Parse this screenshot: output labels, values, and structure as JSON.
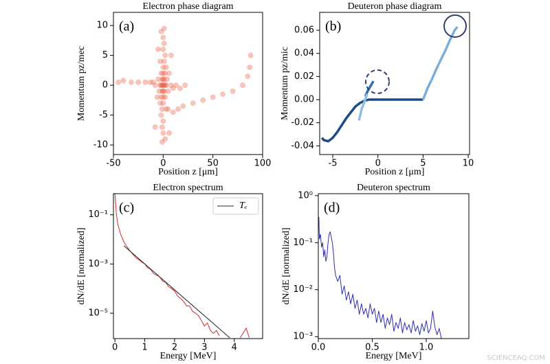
{
  "chart_data": [
    {
      "type": "scatter",
      "title": "Electron phase diagram",
      "panel_label": "(a)",
      "x_label": "Position z [μm]",
      "y_label": "Momentum  pz/mec",
      "xlim": [
        -50,
        100
      ],
      "ylim": [
        -11.6,
        12.2
      ],
      "xticks": [
        -50,
        0,
        50,
        100
      ],
      "yticks": [
        -10,
        -5,
        0,
        5,
        10
      ],
      "log_y": false,
      "series": [
        {
          "color": "#e8553c",
          "x": [
            0,
            1,
            -1,
            2,
            -2,
            0,
            0,
            1,
            -1,
            1,
            -1,
            3,
            -3,
            0,
            0,
            2,
            -2,
            2,
            -2,
            4,
            -4,
            0,
            0,
            3,
            -3,
            5,
            -5,
            1,
            -1,
            2,
            -2,
            0,
            0,
            1,
            -1,
            0,
            0,
            1,
            -1,
            3,
            -3,
            6,
            -6,
            8,
            -8,
            10,
            -10,
            13,
            -13,
            17,
            -18,
            22,
            -25,
            -32,
            -40,
            -45,
            5,
            10,
            15,
            20,
            30,
            40,
            50,
            60,
            70,
            80,
            85,
            87,
            88,
            8,
            -5,
            -8,
            6,
            -2,
            2
          ],
          "values": [
            0,
            0,
            0,
            0,
            0,
            1,
            -1,
            1,
            -1,
            -1,
            1,
            0,
            0,
            2,
            -2,
            2,
            -2,
            -2,
            2,
            1,
            -1,
            3,
            -3,
            3,
            -3,
            -1,
            1,
            4,
            -4,
            5,
            -5,
            6,
            -6,
            7,
            -7,
            8,
            -8,
            9.5,
            -9.5,
            -4,
            4,
            2,
            -2,
            0,
            0,
            -0.5,
            0.5,
            0,
            0.5,
            -0.5,
            0.5,
            0,
            0.5,
            0.5,
            0.8,
            0.5,
            -4,
            -4.5,
            -4,
            -3.5,
            -3,
            -2.5,
            -2,
            -1.5,
            -1,
            0,
            1.5,
            3,
            5,
            5,
            6,
            -7,
            -8,
            9,
            -9
          ]
        }
      ]
    },
    {
      "type": "line",
      "title": "Deuteron phase diagram",
      "panel_label": "(b)",
      "x_label": "Position z [μm]",
      "y_label": "Momentum  pz/mic",
      "xlim": [
        -6.45,
        10.15
      ],
      "ylim": [
        -0.0475,
        0.0755
      ],
      "xticks": [
        -5,
        0,
        5,
        10
      ],
      "yticks": [
        -0.04,
        -0.02,
        {
          "value": 0,
          "label": "0.00"
        },
        0.02,
        0.04,
        0.06
      ],
      "log_y": false,
      "series": [
        {
          "color": "#1a4a87",
          "x": [
            -6.2,
            -6,
            -5.5,
            -5,
            -4.5,
            -4,
            -3.5,
            -3,
            -2.5,
            -2,
            -1.5,
            -1,
            -0.5,
            0,
            1,
            2,
            3,
            4,
            5
          ],
          "values": [
            -0.033,
            -0.035,
            -0.036,
            -0.033,
            -0.028,
            -0.022,
            -0.016,
            -0.011,
            -0.006,
            -0.003,
            -0.001,
            0,
            0,
            0,
            0,
            0,
            0,
            0,
            0
          ]
        },
        {
          "color": "#2f6db5",
          "x": [
            -1.4,
            -1.1,
            -0.8,
            -0.5
          ],
          "values": [
            0.003,
            0.008,
            0.012,
            0.016
          ]
        },
        {
          "color": "#8fbfe0",
          "x": [
            -2.1,
            -1.8,
            -1.5,
            -1.2
          ],
          "values": [
            -0.018,
            -0.008,
            -0.002,
            0.005
          ]
        },
        {
          "color": "#7aaed8",
          "x": [
            5,
            5.5,
            6,
            6.5,
            7,
            7.5,
            8,
            8.5,
            8.8
          ],
          "values": [
            0,
            0.01,
            0.018,
            0.027,
            0.035,
            0.043,
            0.052,
            0.06,
            0.063
          ]
        }
      ]
    },
    {
      "type": "line",
      "title": "Electron spectrum",
      "panel_label": "(c)",
      "x_label": "Energy [MeV]",
      "y_label": "dN/dE [normalized]",
      "xlim": [
        -0.05,
        4.95
      ],
      "ylim": [
        9.3e-07,
        0.72
      ],
      "xticks": [
        0,
        1,
        2,
        3,
        4
      ],
      "yticks": [
        {
          "value": 0.1,
          "label": "10⁻¹"
        },
        {
          "value": 0.001,
          "label": "10⁻³"
        },
        {
          "value": 1e-05,
          "label": "10⁻⁵"
        }
      ],
      "log_y": true,
      "series": [
        {
          "color": "#d62728",
          "x": [
            0,
            0.05,
            0.1,
            0.2,
            0.3,
            0.4,
            0.5,
            0.6,
            0.7,
            0.8,
            0.9,
            1.0,
            1.1,
            1.2,
            1.3,
            1.4,
            1.5,
            1.6,
            1.7,
            1.8,
            1.9,
            2.0,
            2.1,
            2.2,
            2.3,
            2.4,
            2.5,
            2.6,
            2.7,
            2.8,
            2.9,
            3.0,
            3.1,
            3.2,
            3.3,
            3.4,
            3.5,
            3.8,
            4.2,
            4.4,
            4.5
          ],
          "values": [
            0.7,
            0.1,
            0.04,
            0.015,
            0.008,
            0.005,
            0.0035,
            0.0025,
            0.0018,
            0.0015,
            0.0012,
            0.001,
            0.0007,
            0.0006,
            0.0004,
            0.00035,
            0.0003,
            0.0002,
            0.00018,
            0.00012,
            0.0001,
            8e-05,
            5e-05,
            4e-05,
            3e-05,
            2e-05,
            2e-05,
            1.2e-05,
            1e-05,
            8e-06,
            5e-06,
            3e-06,
            4e-06,
            2e-06,
            1.5e-06,
            2e-06,
            1.2e-06,
            null,
            1e-06,
            2.5e-06,
            1e-06
          ]
        },
        {
          "name": "Tₑ",
          "color": "#222222",
          "x": [
            0.3,
            3.85
          ],
          "values": [
            0.0055,
            1e-06
          ]
        }
      ]
    },
    {
      "type": "line",
      "title": "Deuteron spectrum",
      "panel_label": "(d)",
      "x_label": "Energy [MeV]",
      "y_label": "dN/dE [normalized]",
      "xlim": [
        0,
        1.395
      ],
      "ylim": [
        0.00091,
        1.1
      ],
      "xticks": [
        {
          "value": 0,
          "label": "0.0"
        },
        0.5,
        {
          "value": 1,
          "label": "1.0"
        }
      ],
      "yticks": [
        {
          "value": 1,
          "label": "10⁰"
        },
        {
          "value": 0.1,
          "label": "10⁻¹"
        },
        {
          "value": 0.01,
          "label": "10⁻²"
        },
        {
          "value": 0.001,
          "label": "10⁻³"
        }
      ],
      "log_y": true,
      "series": [
        {
          "color": "#2b2bb5",
          "x": [
            0.005,
            0.01,
            0.02,
            0.03,
            0.04,
            0.05,
            0.06,
            0.07,
            0.08,
            0.09,
            0.1,
            0.11,
            0.12,
            0.13,
            0.14,
            0.15,
            0.16,
            0.18,
            0.2,
            0.22,
            0.24,
            0.26,
            0.28,
            0.3,
            0.32,
            0.34,
            0.36,
            0.38,
            0.4,
            0.42,
            0.44,
            0.46,
            0.48,
            0.5,
            0.52,
            0.54,
            0.56,
            0.58,
            0.6,
            0.62,
            0.64,
            0.66,
            0.68,
            0.7,
            0.72,
            0.74,
            0.76,
            0.78,
            0.8,
            0.82,
            0.84,
            0.86,
            0.88,
            0.9,
            0.92,
            0.94,
            0.96,
            0.98,
            1.0,
            1.02,
            1.04,
            1.06,
            1.08,
            1.1,
            1.12,
            1.14
          ],
          "values": [
            0.35,
            0.12,
            0.15,
            0.08,
            0.1,
            0.05,
            0.07,
            0.04,
            0.05,
            0.1,
            0.15,
            0.17,
            0.13,
            0.1,
            0.06,
            0.03,
            0.02,
            0.015,
            0.02,
            0.008,
            0.012,
            0.006,
            0.009,
            0.005,
            0.008,
            0.004,
            0.006,
            0.003,
            0.005,
            0.003,
            0.004,
            0.0025,
            0.005,
            0.003,
            0.004,
            0.002,
            0.0035,
            0.002,
            0.003,
            0.0015,
            0.0025,
            0.0018,
            0.003,
            0.0013,
            0.002,
            0.0015,
            0.0025,
            0.0012,
            0.002,
            0.0014,
            0.0018,
            0.0012,
            0.0022,
            0.0013,
            0.0017,
            0.0011,
            0.0019,
            0.0013,
            0.0022,
            0.0012,
            0.0015,
            0.0035,
            0.0016,
            0.0011,
            0.0015,
            0.00092
          ]
        }
      ]
    }
  ],
  "watermark": "SCIENCEAQ.COM"
}
